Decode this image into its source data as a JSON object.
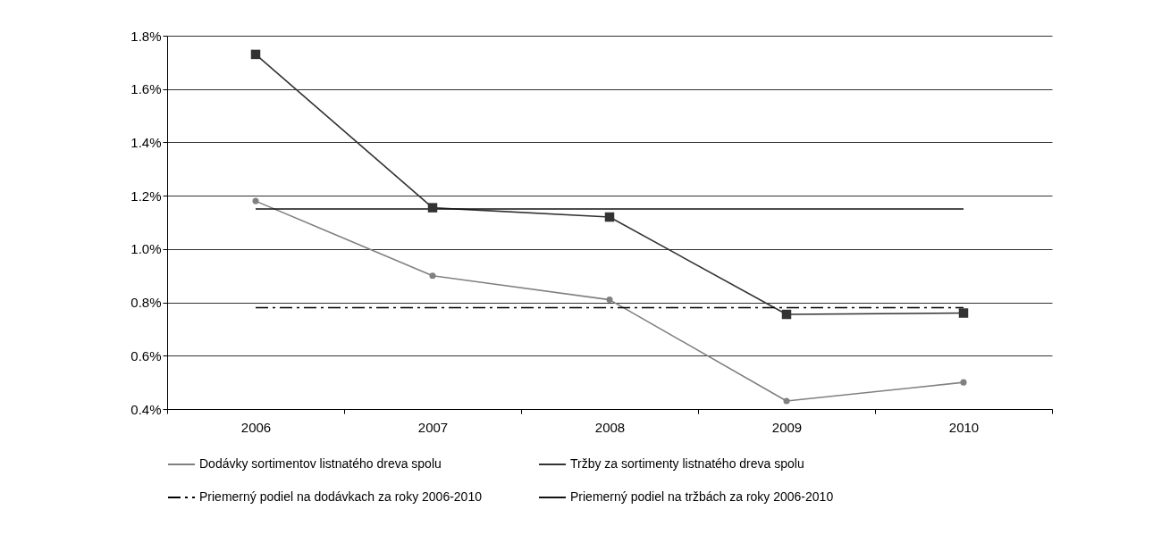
{
  "chart_data": {
    "type": "line",
    "categories": [
      "2006",
      "2007",
      "2008",
      "2009",
      "2010"
    ],
    "series": [
      {
        "name": "Dodávky sortimentov listnatého dreva spolu",
        "color": "#808080",
        "marker": "circle",
        "line_style": "solid",
        "values": [
          1.18,
          0.9,
          0.81,
          0.43,
          0.5
        ]
      },
      {
        "name": "Tržby za sortimenty listnatého dreva spolu",
        "color": "#333333",
        "marker": "square",
        "line_style": "solid",
        "values": [
          1.73,
          1.155,
          1.12,
          0.755,
          0.76
        ]
      },
      {
        "name": "Priemerný podiel na dodávkach za roky 2006-2010",
        "color": "#000000",
        "marker": "none",
        "line_style": "dashed",
        "values": [
          0.78,
          0.78,
          0.78,
          0.78,
          0.78
        ]
      },
      {
        "name": "Priemerný podiel na tržbách za roky 2006-2010",
        "color": "#111111",
        "marker": "none",
        "line_style": "solid",
        "values": [
          1.15,
          1.15,
          1.15,
          1.15,
          1.15
        ]
      }
    ],
    "ylim": [
      0.4,
      1.8
    ],
    "yticks": [
      {
        "value": 0.4,
        "label": "0.4%"
      },
      {
        "value": 0.6,
        "label": "0.6%"
      },
      {
        "value": 0.8,
        "label": "0.8%"
      },
      {
        "value": 1.0,
        "label": "1.0%"
      },
      {
        "value": 1.2,
        "label": "1.2%"
      },
      {
        "value": 1.4,
        "label": "1.4%"
      },
      {
        "value": 1.6,
        "label": "1.6%"
      },
      {
        "value": 1.8,
        "label": "1.8%"
      }
    ],
    "grid": "y",
    "legend": "bottom"
  }
}
